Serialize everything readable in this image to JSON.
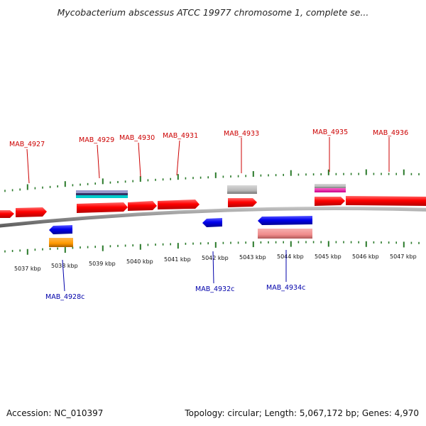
{
  "title": "Mycobacterium abscessus ATCC 19977 chromosome 1, complete se...",
  "footer": {
    "accession": "Accession: NC_010397",
    "info": "Topology: circular; Length: 5,067,172 bp; Genes: 4,970"
  },
  "colors": {
    "forward_gene": "#ff0000",
    "reverse_gene": "#0000ff",
    "forward_label": "#cc0000",
    "reverse_label": "#0000aa",
    "tick": "#2a7a2a",
    "backbone": "#888888"
  },
  "scale_labels": [
    "5037 kbp",
    "5038 kbp",
    "5039 kbp",
    "5040 kbp",
    "5041 kbp",
    "5042 kbp",
    "5043 kbp",
    "5044 kbp",
    "5045 kbp",
    "5046 kbp",
    "5047 kbp"
  ],
  "forward_genes": [
    {
      "label": "MAB_4927"
    },
    {
      "label": "MAB_4929"
    },
    {
      "label": "MAB_4930"
    },
    {
      "label": "MAB_4931"
    },
    {
      "label": "MAB_4933"
    },
    {
      "label": "MAB_4935"
    },
    {
      "label": "MAB_4936"
    }
  ],
  "reverse_genes": [
    {
      "label": "MAB_4928c"
    },
    {
      "label": "MAB_4932c"
    },
    {
      "label": "MAB_4934c"
    }
  ]
}
